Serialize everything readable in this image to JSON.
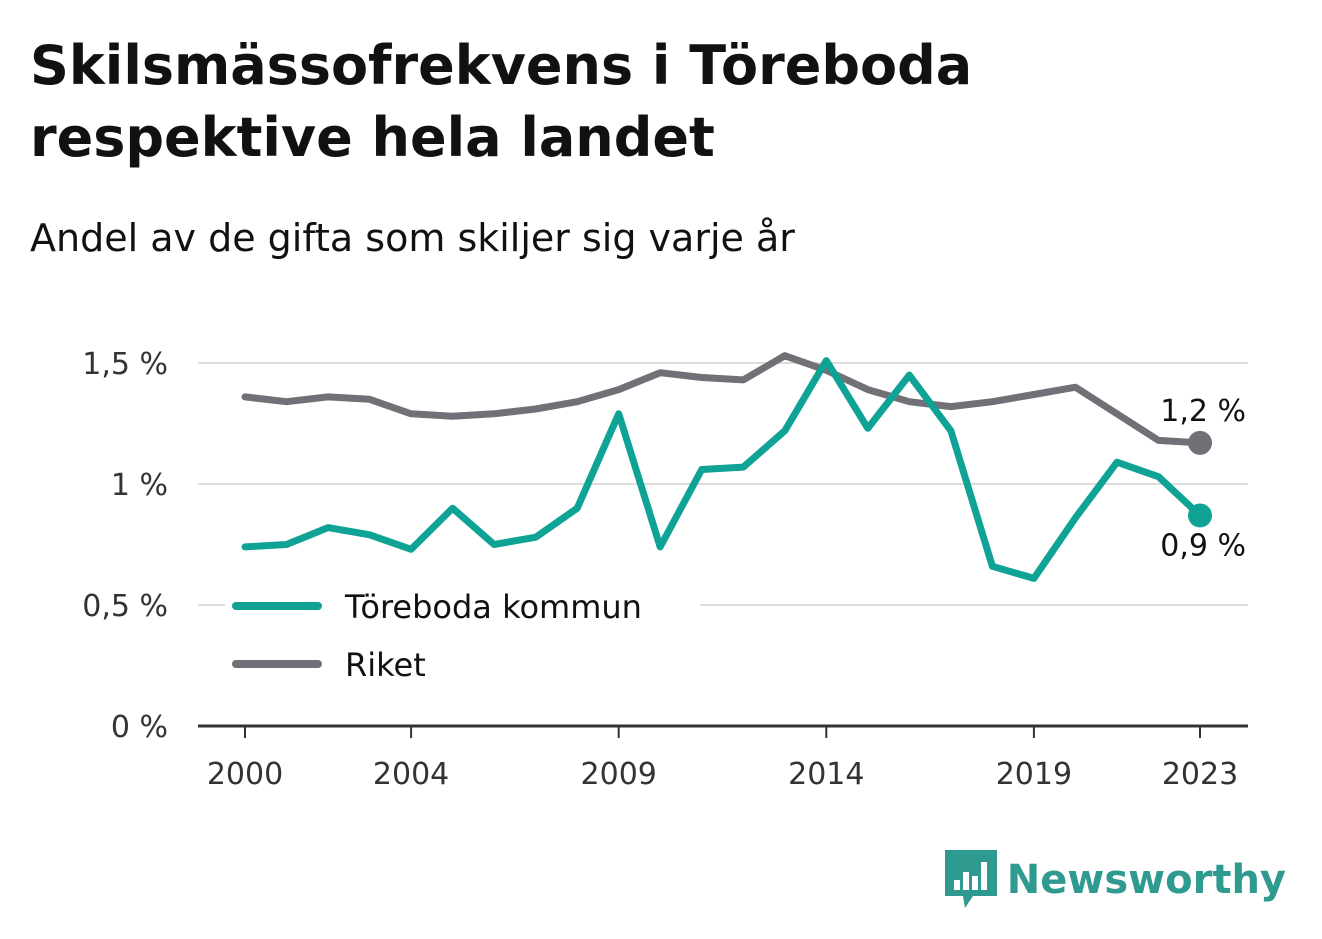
{
  "chart_data": {
    "type": "line",
    "title": "Skilsmässofrekvens i Töreboda respektive hela landet",
    "subtitle": "Andel av de gifta som skiljer sig varje år",
    "x": [
      2000,
      2001,
      2002,
      2003,
      2004,
      2005,
      2006,
      2007,
      2008,
      2009,
      2010,
      2011,
      2012,
      2013,
      2014,
      2015,
      2016,
      2017,
      2018,
      2019,
      2020,
      2021,
      2022,
      2023
    ],
    "x_ticks": [
      2000,
      2004,
      2009,
      2014,
      2019,
      2023
    ],
    "y_ticks": [
      {
        "value": 0,
        "label": "0 %"
      },
      {
        "value": 0.5,
        "label": "0,5 %"
      },
      {
        "value": 1,
        "label": "1 %"
      },
      {
        "value": 1.5,
        "label": "1,5 %"
      }
    ],
    "ylim": [
      0,
      1.5
    ],
    "grid": true,
    "legend_position": "bottom-left",
    "series": [
      {
        "name": "Töreboda kommun",
        "color": "#0fa396",
        "values": [
          0.74,
          0.75,
          0.82,
          0.79,
          0.73,
          0.9,
          0.75,
          0.78,
          0.9,
          1.29,
          0.74,
          1.06,
          1.07,
          1.22,
          1.51,
          1.23,
          1.45,
          1.22,
          0.66,
          0.61,
          0.86,
          1.09,
          1.03,
          0.87
        ],
        "end_label": "0,9 %"
      },
      {
        "name": "Riket",
        "color": "#717077",
        "values": [
          1.36,
          1.34,
          1.36,
          1.35,
          1.29,
          1.28,
          1.29,
          1.31,
          1.34,
          1.39,
          1.46,
          1.44,
          1.43,
          1.53,
          1.47,
          1.39,
          1.34,
          1.32,
          1.34,
          1.37,
          1.4,
          1.29,
          1.18,
          1.17
        ],
        "end_label": "1,2 %"
      }
    ]
  },
  "branding": {
    "logo_text": "Newsworthy",
    "logo_icon": "bar-chart-badge-icon",
    "color": "#2e9a90"
  }
}
